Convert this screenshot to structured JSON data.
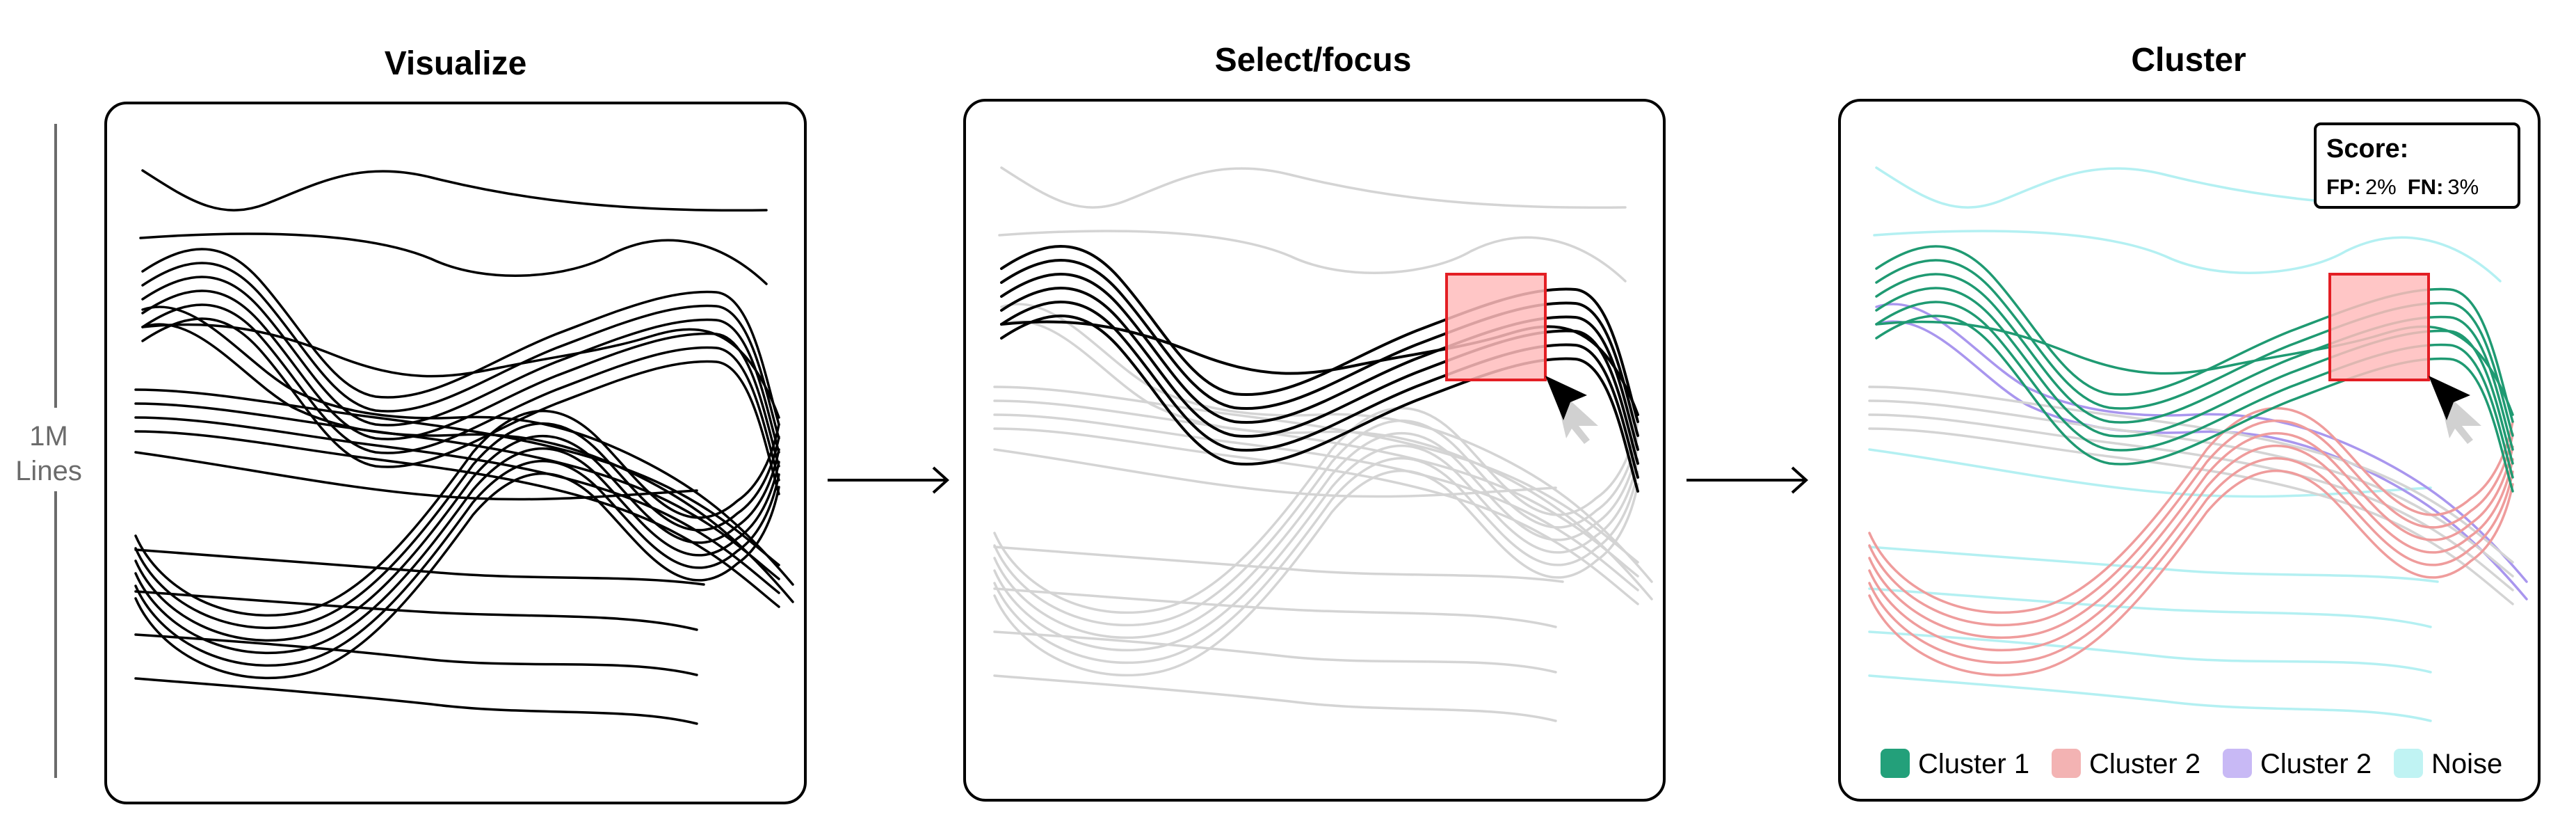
{
  "axis_label": {
    "line1": "1M",
    "line2": "Lines"
  },
  "panels": [
    {
      "title": "Visualize"
    },
    {
      "title": "Select/focus"
    },
    {
      "title": "Cluster"
    }
  ],
  "score": {
    "title": "Score:",
    "fp_label": "FP:",
    "fp_value": "2%",
    "fn_label": "FN:",
    "fn_value": "3%"
  },
  "legend": [
    {
      "label": "Cluster 1",
      "color": "#23a07a"
    },
    {
      "label": "Cluster 2",
      "color": "#f3b3b3"
    },
    {
      "label": "Cluster 2",
      "color": "#c8b9f5"
    },
    {
      "label": "Noise",
      "color": "#c0f3f3"
    }
  ],
  "colors": {
    "visualize_lines": "#000000",
    "dimmed_lines": "#d4d4d4",
    "highlight_lines": "#000000",
    "selection_fill": "#ffbcbc",
    "selection_stroke": "#e31e24",
    "cluster1": "#1f9a72",
    "cluster2": "#ef9c9c",
    "cluster3": "#a996ee",
    "noise": "#b4f0f2"
  },
  "icons": [
    "right-arrow-icon",
    "cursor-icon"
  ]
}
